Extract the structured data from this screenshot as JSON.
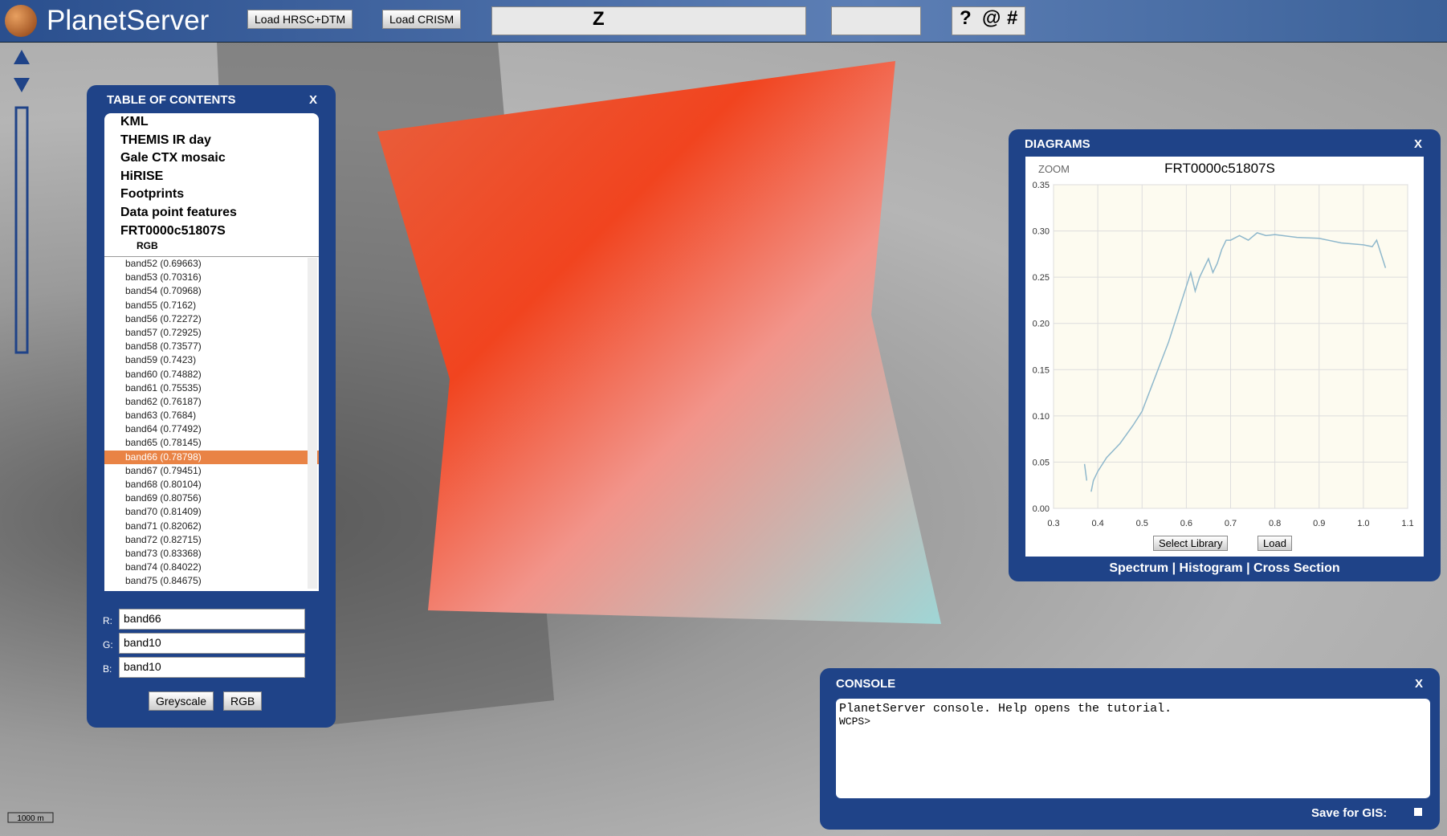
{
  "header": {
    "logo": "PlanetServer",
    "buttons": [
      "Load HRSC+DTM",
      "Load CRISM"
    ],
    "tools": [
      "Z",
      "?",
      "@",
      "#"
    ]
  },
  "toc": {
    "title": "TABLE OF CONTENTS",
    "close": "X",
    "layers": [
      "KML",
      "THEMIS IR day",
      "Gale CTX mosaic",
      "HiRISE",
      "Footprints",
      "Data point features",
      "FRT0000c51807S"
    ],
    "sublayer": "RGB",
    "bands": [
      "band52 (0.69663)",
      "band53 (0.70316)",
      "band54 (0.70968)",
      "band55 (0.7162)",
      "band56 (0.72272)",
      "band57 (0.72925)",
      "band58 (0.73577)",
      "band59 (0.7423)",
      "band60 (0.74882)",
      "band61 (0.75535)",
      "band62 (0.76187)",
      "band63 (0.7684)",
      "band64 (0.77492)",
      "band65 (0.78145)",
      "band66 (0.78798)",
      "band67 (0.79451)",
      "band68 (0.80104)",
      "band69 (0.80756)",
      "band70 (0.81409)",
      "band71 (0.82062)",
      "band72 (0.82715)",
      "band73 (0.83368)",
      "band74 (0.84022)",
      "band75 (0.84675)"
    ],
    "selected_band": "band66 (0.78798)",
    "inputs": [
      {
        "label": "R:",
        "value": "band66"
      },
      {
        "label": "G:",
        "value": "band10"
      },
      {
        "label": "B:",
        "value": "band10"
      }
    ],
    "buttons": [
      "Greyscale",
      "RGB"
    ]
  },
  "diagrams": {
    "title": "DIAGRAMS",
    "close": "X",
    "zoom": "ZOOM",
    "select": "Select Library",
    "load": "Load",
    "tabs": [
      "Spectrum",
      "Histogram",
      "Cross Section"
    ]
  },
  "chart_data": {
    "type": "line",
    "title": "FRT0000c51807S",
    "color": "#8fb8cc",
    "grid": true,
    "x": [
      0.37,
      0.375,
      0.378,
      0.385,
      0.39,
      0.4,
      0.42,
      0.45,
      0.48,
      0.5,
      0.52,
      0.54,
      0.56,
      0.58,
      0.6,
      0.61,
      0.62,
      0.63,
      0.64,
      0.65,
      0.66,
      0.67,
      0.68,
      0.69,
      0.7,
      0.72,
      0.74,
      0.76,
      0.78,
      0.8,
      0.85,
      0.9,
      0.95,
      1.0,
      1.02,
      1.03,
      1.04,
      1.05
    ],
    "values": [
      0.048,
      0.03,
      null,
      0.018,
      0.03,
      0.04,
      0.055,
      0.07,
      0.09,
      0.105,
      0.13,
      0.155,
      0.18,
      0.21,
      0.24,
      0.255,
      0.235,
      0.25,
      0.26,
      0.27,
      0.255,
      0.265,
      0.28,
      0.29,
      0.29,
      0.295,
      0.29,
      0.298,
      0.295,
      0.296,
      0.293,
      0.292,
      0.287,
      0.285,
      0.283,
      0.29,
      0.275,
      0.26
    ],
    "xlim": [
      0.3,
      1.1
    ],
    "ylim": [
      0,
      0.35
    ],
    "xticks": [
      0.3,
      0.4,
      0.5,
      0.6,
      0.7,
      0.8,
      0.9,
      {
        "value": 1.0,
        "label": "1.0"
      },
      1.1
    ],
    "yticks": [
      {
        "value": 0,
        "label": "0.00"
      },
      0.05,
      {
        "value": 0.1,
        "label": "0.10"
      },
      0.15,
      {
        "value": 0.2,
        "label": "0.20"
      },
      0.25,
      {
        "value": 0.3,
        "label": "0.30"
      },
      0.35
    ]
  },
  "console": {
    "title": "CONSOLE",
    "close": "X",
    "lines": [
      "PlanetServer console. Help opens the tutorial.",
      "WCPS>"
    ],
    "save": "Save for GIS:"
  },
  "map": {
    "scale": "1000 m"
  }
}
